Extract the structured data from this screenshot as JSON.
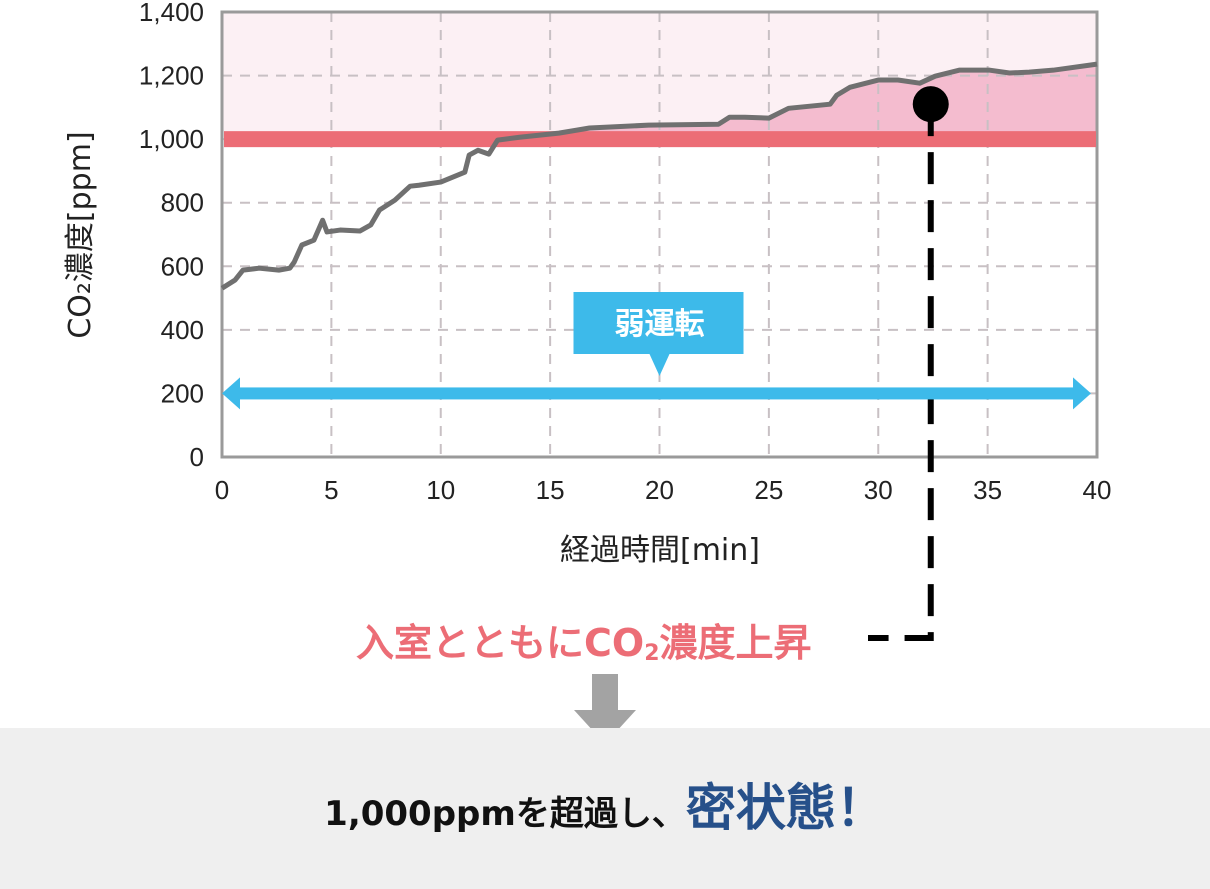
{
  "chart_data": {
    "type": "line",
    "xlabel": "経過時間[min]",
    "ylabel": "CO₂濃度[ppm]",
    "xlim": [
      0,
      40
    ],
    "ylim": [
      0,
      1400
    ],
    "xticks": [
      0,
      5,
      10,
      15,
      20,
      25,
      30,
      35,
      40
    ],
    "yticks": [
      0,
      200,
      400,
      600,
      800,
      1000,
      1200,
      1400
    ],
    "ytick_labels": [
      "0",
      "200",
      "400",
      "600",
      "800",
      "1,000",
      "1,200",
      "1,400"
    ],
    "grid": true,
    "threshold": {
      "value": 1000,
      "label": "1,000",
      "color": "#ec6d76"
    },
    "series": [
      {
        "color": "#707070",
        "x": [
          0,
          0.6,
          0.96,
          1.7,
          2.6,
          3.1,
          3.3,
          3.65,
          4.2,
          4.6,
          4.8,
          5.4,
          6.3,
          6.8,
          7.2,
          7.9,
          8.6,
          9.0,
          10,
          11.1,
          11.3,
          11.7,
          12.2,
          12.6,
          13.6,
          15.4,
          16.8,
          19.5,
          22.7,
          23.2,
          23.9,
          25,
          25.9,
          27.8,
          28.1,
          28.7,
          30,
          30.9,
          31.9,
          32.6,
          33.7,
          35.1,
          36,
          36.9,
          38,
          40
        ],
        "y": [
          531,
          557,
          588,
          594,
          588,
          594,
          613,
          667,
          682,
          745,
          708,
          714,
          711,
          730,
          777,
          808,
          852,
          855,
          865,
          896,
          950,
          965,
          953,
          997,
          1006,
          1019,
          1035,
          1044,
          1047,
          1069,
          1069,
          1066,
          1097,
          1110,
          1138,
          1163,
          1186,
          1186,
          1176,
          1198,
          1217,
          1217,
          1208,
          1211,
          1217,
          1236
        ]
      }
    ],
    "marker": {
      "x": 32.4,
      "y": 1110
    },
    "annotations": [
      {
        "text": "弱運転",
        "type": "range-arrow",
        "x_from": 0,
        "x_to": 40,
        "y": 200,
        "color": "#3dbaea"
      }
    ],
    "colors": {
      "above_threshold_bg": "#fcf0f4",
      "above_threshold_fill": "#f4bccf",
      "grid": "#c8c0c4",
      "frame": "#9a9a9a"
    }
  },
  "callout": {
    "text_before": "入室とともにCO",
    "subscript": "2",
    "text_after": "濃度上昇"
  },
  "conclusion": {
    "lead": "1,000ppmを超過し、",
    "emphasis": "密状態！"
  }
}
